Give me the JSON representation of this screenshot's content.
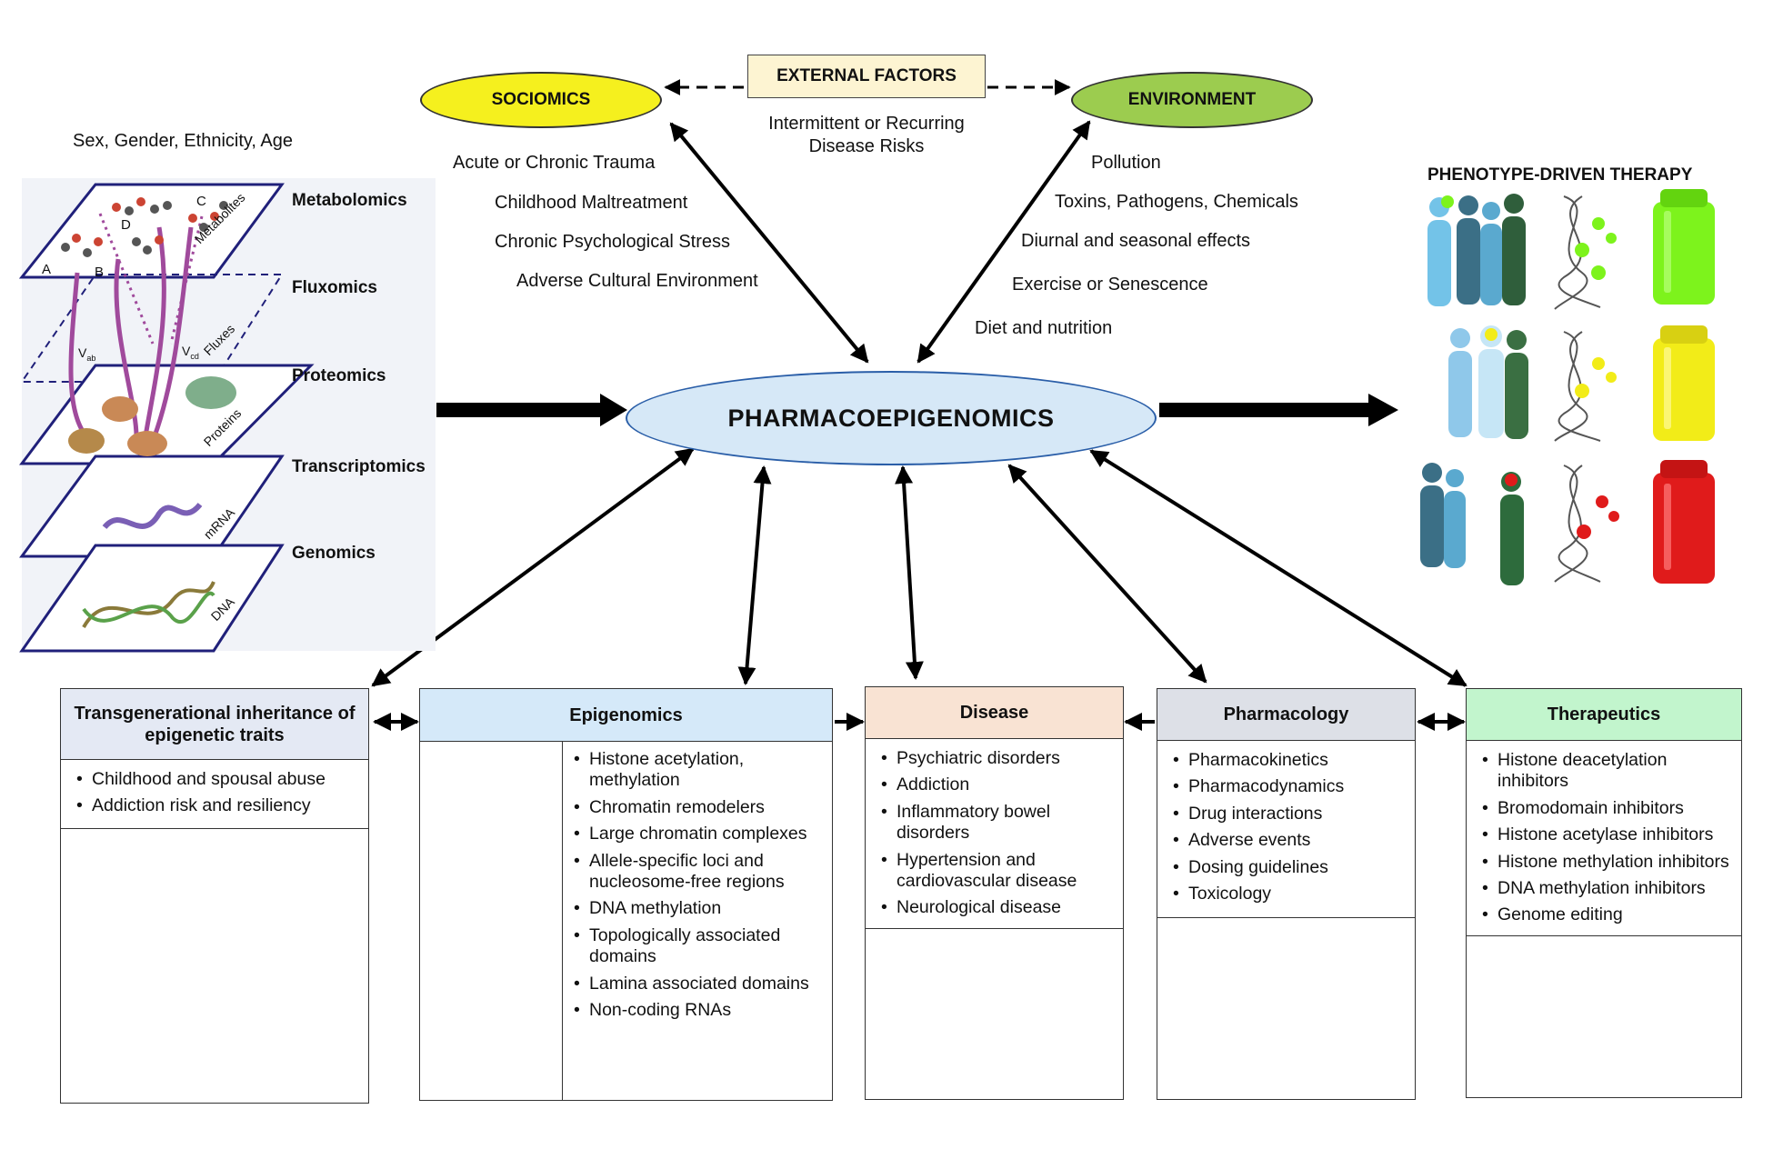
{
  "top": {
    "external_factors": "EXTERNAL FACTORS",
    "external_sub": "Intermittent or Recurring",
    "external_sub2": "Disease Risks",
    "sociomics": "SOCIOMICS",
    "environment": "ENVIRONMENT",
    "sociomics_items": [
      "Acute or Chronic Trauma",
      "Childhood Maltreatment",
      "Chronic Psychological Stress",
      "Adverse Cultural Environment"
    ],
    "environment_items": [
      "Pollution",
      "Toxins, Pathogens, Chemicals",
      "Diurnal and seasonal effects",
      "Exercise or Senescence",
      "Diet and nutrition"
    ]
  },
  "center": {
    "title": "PHARMACOEPIGENOMICS"
  },
  "omics": {
    "demographics": "Sex, Gender, Ethnicity, Age",
    "layers": [
      "Metabolomics",
      "Fluxomics",
      "Proteomics",
      "Transcriptomics",
      "Genomics"
    ],
    "plane_labels": [
      "Metabolites",
      "Fluxes",
      "Proteins",
      "mRNA",
      "DNA"
    ],
    "molecule_labels": [
      "A",
      "B",
      "C",
      "D"
    ],
    "flux_labels": [
      "V",
      "ab",
      "V",
      "cd"
    ]
  },
  "therapy": {
    "title": "PHENOTYPE-DRIVEN THERAPY",
    "colors": [
      "#7df31c",
      "#f2ec18",
      "#e01b1b"
    ]
  },
  "panels": {
    "transgenerational": {
      "title": "Transgenerational inheritance of epigenetic traits",
      "items": [
        "Childhood and spousal abuse",
        "Addiction risk and resiliency"
      ]
    },
    "epigenomics": {
      "title": "Epigenomics",
      "items": [
        "Histone acetylation, methylation",
        "Chromatin remodelers",
        "Large chromatin complexes",
        "Allele-specific loci and nucleosome-free regions",
        "DNA methylation",
        "Topologically associated domains",
        "Lamina associated domains",
        "Non-coding RNAs"
      ]
    },
    "disease": {
      "title": "Disease",
      "items": [
        "Psychiatric disorders",
        "Addiction",
        "Inflammatory bowel disorders",
        "Hypertension and cardiovascular disease",
        "Neurological disease"
      ]
    },
    "pharmacology": {
      "title": "Pharmacology",
      "items": [
        "Pharmacokinetics",
        "Pharmacodynamics",
        "Drug interactions",
        "Adverse events",
        "Dosing guidelines",
        "Toxicology"
      ]
    },
    "therapeutics": {
      "title": "Therapeutics",
      "items": [
        "Histone deacetylation inhibitors",
        "Bromodomain inhibitors",
        "Histone acetylase inhibitors",
        "Histone methylation inhibitors",
        "DNA methylation inhibitors",
        "Genome editing"
      ]
    }
  },
  "colors": {
    "sociomics_fill": "#f5f01e",
    "environment_fill": "#9ccc4f",
    "external_fill": "#fdf4d2",
    "center_fill": "#d6e8f7",
    "transgen_head": "#e4e9f4",
    "epigenomics_head": "#d5e9f9",
    "disease_head": "#f9e3d3",
    "pharmacology_head": "#dde0e7",
    "therapeutics_head": "#c2f5cd"
  }
}
